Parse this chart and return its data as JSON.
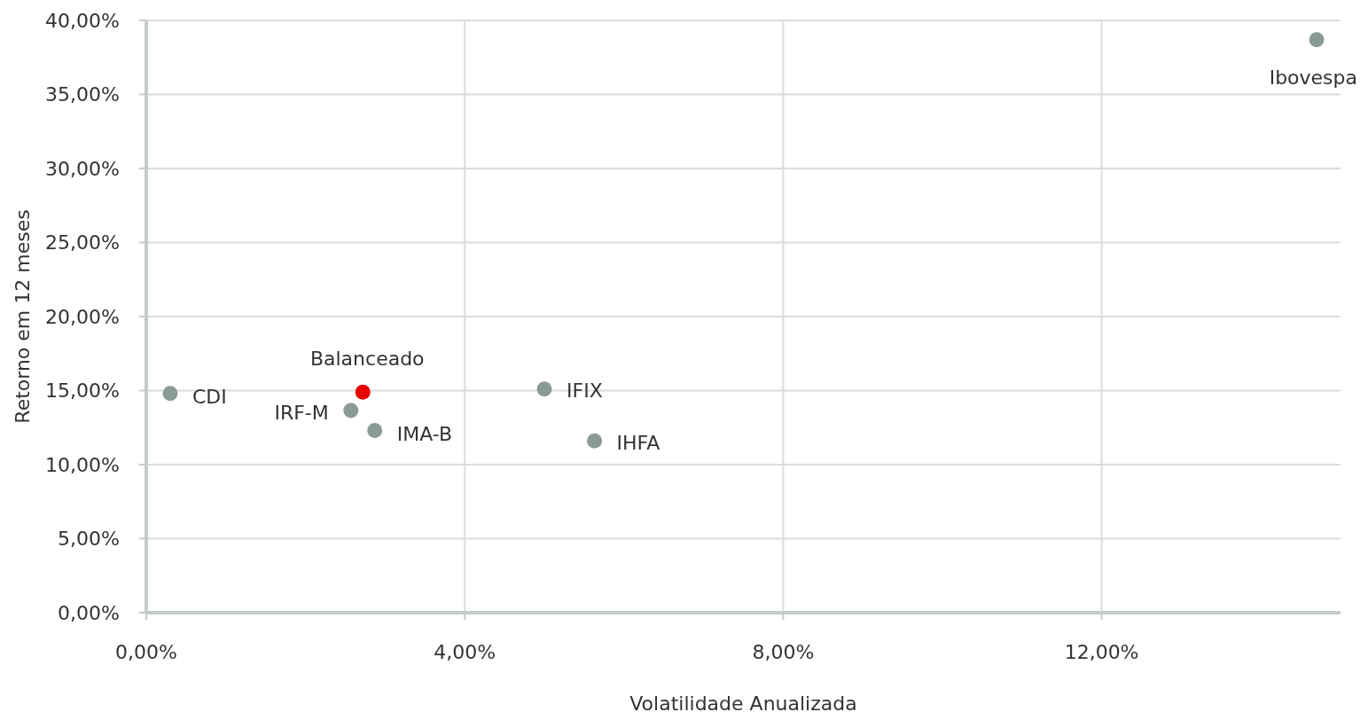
{
  "chart_data": {
    "type": "scatter",
    "xlabel": "Volatilidade Anualizada",
    "ylabel": "Retorno em 12 meses",
    "xlim": [
      0,
      15
    ],
    "xticks": [
      {
        "value": 0,
        "label": "0,00%"
      },
      {
        "value": 4,
        "label": "4,00%"
      },
      {
        "value": 8,
        "label": "8,00%"
      },
      {
        "value": 12,
        "label": "12,00%"
      }
    ],
    "ylim": [
      0,
      40
    ],
    "yticks": [
      {
        "value": 0,
        "label": "0,00%"
      },
      {
        "value": 5,
        "label": "5,00%"
      },
      {
        "value": 10,
        "label": "10,00%"
      },
      {
        "value": 15,
        "label": "15,00%"
      },
      {
        "value": 20,
        "label": "20,00%"
      },
      {
        "value": 25,
        "label": "25,00%"
      },
      {
        "value": 30,
        "label": "30,00%"
      },
      {
        "value": 35,
        "label": "35,00%"
      },
      {
        "value": 40,
        "label": "40,00%"
      }
    ],
    "grid": true,
    "marker": "circle",
    "series": [
      {
        "name": "CDI",
        "color": "#8a9a95",
        "x": [
          0.3
        ],
        "values": [
          14.8
        ]
      },
      {
        "name": "Balanceado",
        "color": "#e60000",
        "x": [
          2.72
        ],
        "values": [
          14.9
        ]
      },
      {
        "name": "IRF-M",
        "color": "#8a9a95",
        "x": [
          2.57
        ],
        "values": [
          13.65
        ]
      },
      {
        "name": "IMA-B",
        "color": "#8a9a95",
        "x": [
          2.87
        ],
        "values": [
          12.3
        ]
      },
      {
        "name": "IFIX",
        "color": "#8a9a95",
        "x": [
          5.0
        ],
        "values": [
          15.1
        ]
      },
      {
        "name": "IHFA",
        "color": "#8a9a95",
        "x": [
          5.63
        ],
        "values": [
          11.6
        ]
      },
      {
        "name": "Ibovespa",
        "color": "#8a9a95",
        "x": [
          14.7
        ],
        "values": [
          38.7
        ]
      }
    ]
  }
}
